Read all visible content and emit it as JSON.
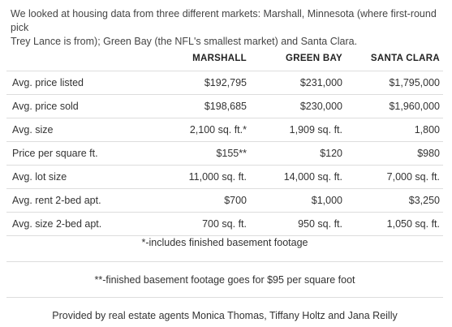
{
  "intro": {
    "line1": "We looked at housing data from three different markets: Marshall, Minnesota (where first-round pick",
    "line2": "Trey Lance is from); Green Bay (the NFL's smallest market) and Santa Clara."
  },
  "table": {
    "headers": [
      "",
      "MARSHALL",
      "GREEN BAY",
      "SANTA CLARA"
    ],
    "rows": [
      {
        "label": "Avg. price listed",
        "marshall": "$192,795",
        "green_bay": "$231,000",
        "santa_clara": "$1,795,000"
      },
      {
        "label": "Avg. price sold",
        "marshall": "$198,685",
        "green_bay": "$230,000",
        "santa_clara": "$1,960,000"
      },
      {
        "label": "Avg. size",
        "marshall": "2,100 sq. ft.*",
        "green_bay": "1,909 sq. ft.",
        "santa_clara": "1,800"
      },
      {
        "label": "Price per square ft.",
        "marshall": "$155**",
        "green_bay": "$120",
        "santa_clara": "$980"
      },
      {
        "label": "Avg. lot size",
        "marshall": "11,000 sq. ft.",
        "green_bay": "14,000 sq. ft.",
        "santa_clara": "7,000 sq. ft."
      },
      {
        "label": "Avg. rent 2-bed apt.",
        "marshall": "$700",
        "green_bay": "$1,000",
        "santa_clara": "$3,250"
      },
      {
        "label": "Avg. size 2-bed apt.",
        "marshall": "700 sq. ft.",
        "green_bay": "950 sq. ft.",
        "santa_clara": "1,050 sq. ft."
      }
    ]
  },
  "notes": {
    "basement": "*-includes finished basement footage",
    "basement_price": "**-finished basement footage goes for $95 per square foot",
    "credit": "Provided by real estate agents Monica Thomas, Tiffany Holtz and Jana Reilly"
  }
}
